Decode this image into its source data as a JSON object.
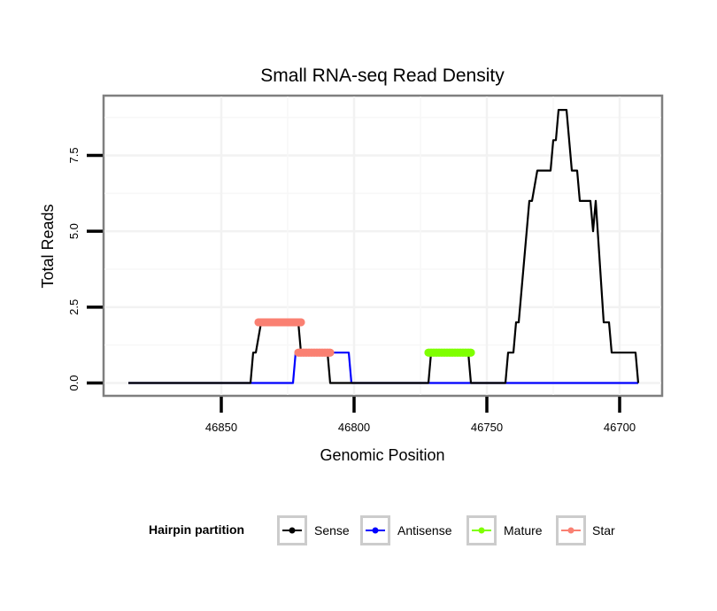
{
  "chart_data": {
    "type": "line",
    "title": "Small RNA-seq Read Density",
    "xlabel": "Genomic Position",
    "ylabel": "Total Reads",
    "x_reversed": true,
    "xlim": [
      46895,
      46685
    ],
    "ylim": [
      -0.5,
      9.5
    ],
    "x_ticks": [
      46850,
      46800,
      46750,
      46700
    ],
    "x_tick_labels": [
      "46850",
      "46800",
      "46750",
      "46700"
    ],
    "y_ticks": [
      0,
      2.5,
      5,
      7.5
    ],
    "y_tick_labels": [
      "0.0",
      "2.5",
      "5.0",
      "7.5"
    ],
    "grid": true,
    "legend": {
      "title": "Hairpin partition",
      "position": "bottom",
      "entries": [
        {
          "name": "Sense",
          "color": "#000000"
        },
        {
          "name": "Antisense",
          "color": "#0000ff"
        },
        {
          "name": "Mature",
          "color": "#7fff00"
        },
        {
          "name": "Star",
          "color": "#fa8072"
        }
      ]
    },
    "series": [
      {
        "name": "Sense",
        "color": "#000000",
        "kind": "line",
        "points": [
          [
            46885,
            0
          ],
          [
            46839,
            0
          ],
          [
            46838,
            1
          ],
          [
            46837,
            1
          ],
          [
            46835,
            2
          ],
          [
            46821,
            2
          ],
          [
            46820,
            1
          ],
          [
            46810,
            1
          ],
          [
            46809,
            0
          ],
          [
            46772,
            0
          ],
          [
            46771,
            1
          ],
          [
            46757,
            1
          ],
          [
            46756,
            0
          ],
          [
            46743,
            0
          ],
          [
            46742,
            1
          ],
          [
            46740,
            1
          ],
          [
            46739,
            2
          ],
          [
            46738,
            2
          ],
          [
            46734,
            6
          ],
          [
            46733,
            6
          ],
          [
            46731,
            7
          ],
          [
            46726,
            7
          ],
          [
            46725,
            8
          ],
          [
            46724,
            8
          ],
          [
            46723,
            9
          ],
          [
            46720,
            9
          ],
          [
            46718,
            7
          ],
          [
            46716,
            7
          ],
          [
            46715,
            6
          ],
          [
            46711,
            6
          ],
          [
            46710,
            5
          ],
          [
            46709,
            6
          ],
          [
            46706,
            2
          ],
          [
            46704,
            2
          ],
          [
            46703,
            1
          ],
          [
            46694,
            1
          ],
          [
            46693,
            0
          ]
        ]
      },
      {
        "name": "Antisense",
        "color": "#0000ff",
        "kind": "line",
        "points": [
          [
            46885,
            0
          ],
          [
            46823,
            0
          ],
          [
            46822,
            1
          ],
          [
            46802,
            1
          ],
          [
            46801,
            0
          ],
          [
            46693,
            0
          ]
        ]
      },
      {
        "name": "Star",
        "color": "#fa8072",
        "kind": "points",
        "ranges": [
          {
            "from": 46836,
            "to": 46820,
            "value": 2
          },
          {
            "from": 46821,
            "to": 46809,
            "value": 1
          }
        ]
      },
      {
        "name": "Mature",
        "color": "#7fff00",
        "kind": "points",
        "ranges": [
          {
            "from": 46772,
            "to": 46756,
            "value": 1
          }
        ]
      }
    ]
  }
}
